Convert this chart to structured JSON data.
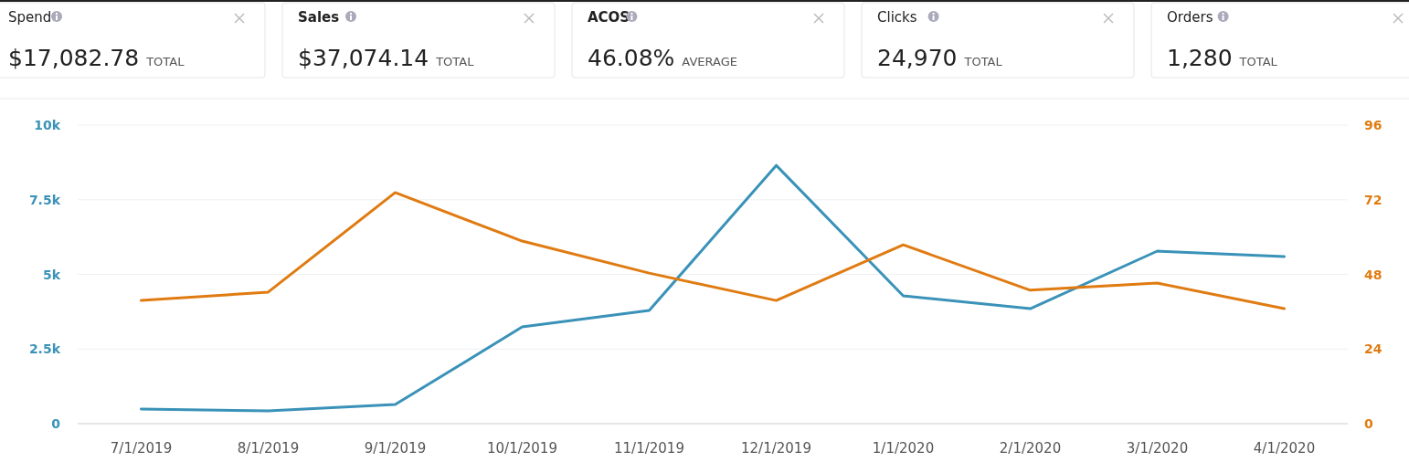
{
  "chart_data": [
    {
      "type": "other",
      "annotations": [
        "Spend",
        "$17,082.78",
        "TOTAL",
        "Sales",
        "$37,074.14",
        "TOTAL",
        "ACOS",
        "46.08%",
        "AVERAGE",
        "Clicks",
        "24,970",
        "TOTAL",
        "Orders",
        "1,280",
        "TOTAL"
      ]
    },
    {
      "type": "line",
      "categories": [
        "7/1/2019",
        "8/1/2019",
        "9/1/2019",
        "10/1/2019",
        "11/1/2019",
        "12/1/2019",
        "1/1/2020",
        "2/1/2020",
        "3/1/2020",
        "4/1/2020"
      ],
      "series": [
        {
          "color": "#3a92b8",
          "values": [
            490,
            430,
            640,
            3240,
            3790,
            8650,
            4280,
            3850,
            5780,
            5600
          ]
        },
        {
          "color": "#e07b12",
          "axis": "y2",
          "values": [
            39.6,
            42.3,
            74.3,
            58.7,
            48.4,
            39.6,
            57.5,
            42.9,
            45.2,
            37
          ]
        }
      ],
      "ylim": [
        0,
        10000
      ],
      "yticks": [
        0,
        {
          "value": 2500,
          "label": "2.5k"
        },
        {
          "value": 5000,
          "label": "5k"
        },
        {
          "value": 7500,
          "label": "7.5k"
        },
        {
          "value": 10000,
          "label": "10k"
        }
      ],
      "y2lim": [
        0,
        96
      ],
      "y2ticks": [
        0,
        24,
        48,
        72,
        96
      ],
      "grid": "y",
      "marker": "none",
      "line_style": "solid"
    }
  ]
}
